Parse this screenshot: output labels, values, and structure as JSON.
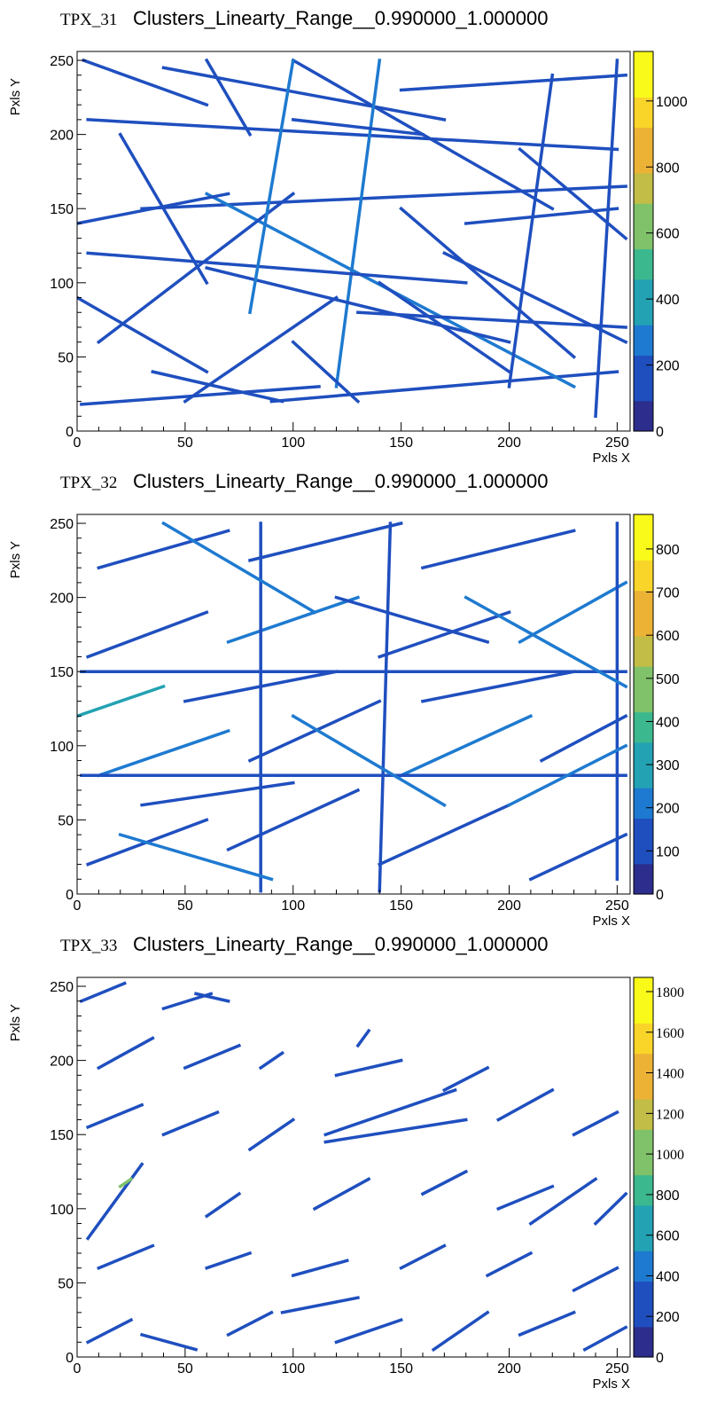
{
  "chart_data": [
    {
      "type": "heatmap",
      "title_prefix": "TPX_31",
      "title": "Clusters_Linearty_Range__0.990000_1.000000",
      "xlabel": "Pxls X",
      "ylabel": "Pxls Y",
      "xlim": [
        0,
        256
      ],
      "ylim": [
        0,
        256
      ],
      "xticks": [
        0,
        50,
        100,
        150,
        200,
        250
      ],
      "yticks": [
        0,
        50,
        100,
        150,
        200,
        250
      ],
      "zlim": [
        0,
        1150
      ],
      "zticks": [
        0,
        200,
        400,
        600,
        800,
        1000
      ],
      "colorscale": [
        "#2c2d8c",
        "#1f4fbf",
        "#1e7ad0",
        "#23a2b3",
        "#3cb88f",
        "#7fc26a",
        "#c1bd46",
        "#ecb236",
        "#f9d52a",
        "#f9f91a"
      ],
      "tracks": [
        {
          "x": [
            2,
            112
          ],
          "y": [
            18,
            30
          ],
          "v": 180
        },
        {
          "x": [
            90,
            250
          ],
          "y": [
            20,
            40
          ],
          "v": 160
        },
        {
          "x": [
            0,
            60
          ],
          "y": [
            90,
            40
          ],
          "v": 220
        },
        {
          "x": [
            40,
            170
          ],
          "y": [
            245,
            210
          ],
          "v": 200
        },
        {
          "x": [
            5,
            250
          ],
          "y": [
            210,
            190
          ],
          "v": 210
        },
        {
          "x": [
            30,
            254
          ],
          "y": [
            150,
            165
          ],
          "v": 190
        },
        {
          "x": [
            60,
            230
          ],
          "y": [
            160,
            30
          ],
          "v": 240
        },
        {
          "x": [
            100,
            220
          ],
          "y": [
            250,
            150
          ],
          "v": 200
        },
        {
          "x": [
            120,
            140
          ],
          "y": [
            30,
            250
          ],
          "v": 230
        },
        {
          "x": [
            150,
            254
          ],
          "y": [
            230,
            240
          ],
          "v": 190
        },
        {
          "x": [
            200,
            220
          ],
          "y": [
            30,
            240
          ],
          "v": 220
        },
        {
          "x": [
            10,
            100
          ],
          "y": [
            60,
            160
          ],
          "v": 210
        },
        {
          "x": [
            60,
            200
          ],
          "y": [
            110,
            60
          ],
          "v": 200
        },
        {
          "x": [
            170,
            254
          ],
          "y": [
            120,
            60
          ],
          "v": 200
        },
        {
          "x": [
            5,
            180
          ],
          "y": [
            120,
            100
          ],
          "v": 180
        },
        {
          "x": [
            240,
            250
          ],
          "y": [
            10,
            250
          ],
          "v": 200
        },
        {
          "x": [
            80,
            100
          ],
          "y": [
            80,
            250
          ],
          "v": 240
        },
        {
          "x": [
            20,
            60
          ],
          "y": [
            200,
            100
          ],
          "v": 220
        },
        {
          "x": [
            150,
            230
          ],
          "y": [
            150,
            50
          ],
          "v": 210
        },
        {
          "x": [
            100,
            160
          ],
          "y": [
            210,
            200
          ],
          "v": 190
        },
        {
          "x": [
            3,
            60
          ],
          "y": [
            250,
            220
          ],
          "v": 200
        },
        {
          "x": [
            35,
            95
          ],
          "y": [
            40,
            20
          ],
          "v": 190
        },
        {
          "x": [
            130,
            254
          ],
          "y": [
            80,
            70
          ],
          "v": 200
        },
        {
          "x": [
            180,
            250
          ],
          "y": [
            140,
            150
          ],
          "v": 180
        },
        {
          "x": [
            60,
            80
          ],
          "y": [
            250,
            200
          ],
          "v": 220
        },
        {
          "x": [
            0,
            70
          ],
          "y": [
            140,
            160
          ],
          "v": 190
        },
        {
          "x": [
            140,
            200
          ],
          "y": [
            100,
            40
          ],
          "v": 200
        },
        {
          "x": [
            100,
            130
          ],
          "y": [
            60,
            20
          ],
          "v": 210
        },
        {
          "x": [
            205,
            254
          ],
          "y": [
            190,
            130
          ],
          "v": 200
        },
        {
          "x": [
            50,
            120
          ],
          "y": [
            20,
            90
          ],
          "v": 190
        }
      ]
    },
    {
      "type": "heatmap",
      "title_prefix": "TPX_32",
      "title": "Clusters_Linearty_Range__0.990000_1.000000",
      "xlabel": "Pxls X",
      "ylabel": "Pxls Y",
      "xlim": [
        0,
        256
      ],
      "ylim": [
        0,
        256
      ],
      "xticks": [
        0,
        50,
        100,
        150,
        200,
        250
      ],
      "yticks": [
        0,
        50,
        100,
        150,
        200,
        250
      ],
      "zlim": [
        0,
        880
      ],
      "zticks": [
        0,
        100,
        200,
        300,
        400,
        500,
        600,
        700,
        800
      ],
      "colorscale": [
        "#2c2d8c",
        "#1f4fbf",
        "#1e7ad0",
        "#23a2b3",
        "#3cb88f",
        "#7fc26a",
        "#c1bd46",
        "#ecb236",
        "#f9d52a",
        "#f9f91a"
      ],
      "tracks": [
        {
          "x": [
            5,
            60
          ],
          "y": [
            20,
            50
          ],
          "v": 160
        },
        {
          "x": [
            70,
            130
          ],
          "y": [
            30,
            70
          ],
          "v": 170
        },
        {
          "x": [
            140,
            200
          ],
          "y": [
            20,
            60
          ],
          "v": 160
        },
        {
          "x": [
            210,
            254
          ],
          "y": [
            10,
            40
          ],
          "v": 170
        },
        {
          "x": [
            10,
            70
          ],
          "y": [
            80,
            110
          ],
          "v": 180
        },
        {
          "x": [
            80,
            140
          ],
          "y": [
            90,
            130
          ],
          "v": 170
        },
        {
          "x": [
            150,
            210
          ],
          "y": [
            80,
            120
          ],
          "v": 180
        },
        {
          "x": [
            215,
            254
          ],
          "y": [
            90,
            120
          ],
          "v": 170
        },
        {
          "x": [
            5,
            60
          ],
          "y": [
            160,
            190
          ],
          "v": 170
        },
        {
          "x": [
            70,
            130
          ],
          "y": [
            170,
            200
          ],
          "v": 180
        },
        {
          "x": [
            140,
            200
          ],
          "y": [
            160,
            190
          ],
          "v": 170
        },
        {
          "x": [
            205,
            254
          ],
          "y": [
            170,
            210
          ],
          "v": 180
        },
        {
          "x": [
            10,
            70
          ],
          "y": [
            220,
            245
          ],
          "v": 160
        },
        {
          "x": [
            80,
            150
          ],
          "y": [
            225,
            250
          ],
          "v": 170
        },
        {
          "x": [
            160,
            230
          ],
          "y": [
            220,
            245
          ],
          "v": 170
        },
        {
          "x": [
            2,
            254
          ],
          "y": [
            150,
            150
          ],
          "v": 150
        },
        {
          "x": [
            2,
            254
          ],
          "y": [
            80,
            80
          ],
          "v": 150
        },
        {
          "x": [
            85,
            85
          ],
          "y": [
            2,
            250
          ],
          "v": 160
        },
        {
          "x": [
            140,
            145
          ],
          "y": [
            2,
            250
          ],
          "v": 160
        },
        {
          "x": [
            250,
            250
          ],
          "y": [
            10,
            250
          ],
          "v": 160
        },
        {
          "x": [
            20,
            90
          ],
          "y": [
            40,
            10
          ],
          "v": 200
        },
        {
          "x": [
            100,
            170
          ],
          "y": [
            120,
            60
          ],
          "v": 180
        },
        {
          "x": [
            180,
            254
          ],
          "y": [
            200,
            140
          ],
          "v": 200
        },
        {
          "x": [
            40,
            110
          ],
          "y": [
            250,
            190
          ],
          "v": 180
        },
        {
          "x": [
            120,
            190
          ],
          "y": [
            200,
            170
          ],
          "v": 170
        },
        {
          "x": [
            0,
            40
          ],
          "y": [
            120,
            140
          ],
          "v": 280
        },
        {
          "x": [
            200,
            254
          ],
          "y": [
            60,
            100
          ],
          "v": 200
        },
        {
          "x": [
            50,
            120
          ],
          "y": [
            130,
            150
          ],
          "v": 170
        },
        {
          "x": [
            160,
            230
          ],
          "y": [
            130,
            150
          ],
          "v": 170
        },
        {
          "x": [
            30,
            100
          ],
          "y": [
            60,
            75
          ],
          "v": 160
        }
      ]
    },
    {
      "type": "heatmap",
      "title_prefix": "TPX_33",
      "title": "Clusters_Linearty_Range__0.990000_1.000000",
      "xlabel": "Pxls X",
      "ylabel": "Pxls Y",
      "xlim": [
        0,
        256
      ],
      "ylim": [
        0,
        256
      ],
      "xticks": [
        0,
        50,
        100,
        150,
        200,
        250
      ],
      "yticks": [
        0,
        50,
        100,
        150,
        200,
        250
      ],
      "zlim": [
        0,
        1870
      ],
      "zticks": [
        0,
        200,
        400,
        600,
        800,
        1000,
        1200,
        1400,
        1600,
        1800
      ],
      "colorscale": [
        "#2c2d8c",
        "#1f4fbf",
        "#1e7ad0",
        "#23a2b3",
        "#3cb88f",
        "#7fc26a",
        "#c1bd46",
        "#ecb236",
        "#f9d52a",
        "#f9f91a"
      ],
      "tracks": [
        {
          "x": [
            2,
            22
          ],
          "y": [
            240,
            252
          ],
          "v": 280
        },
        {
          "x": [
            40,
            62
          ],
          "y": [
            235,
            245
          ],
          "v": 260
        },
        {
          "x": [
            55,
            70
          ],
          "y": [
            245,
            240
          ],
          "v": 270
        },
        {
          "x": [
            10,
            35
          ],
          "y": [
            195,
            215
          ],
          "v": 280
        },
        {
          "x": [
            50,
            75
          ],
          "y": [
            195,
            210
          ],
          "v": 270
        },
        {
          "x": [
            85,
            95
          ],
          "y": [
            195,
            205
          ],
          "v": 260
        },
        {
          "x": [
            130,
            135
          ],
          "y": [
            210,
            220
          ],
          "v": 280
        },
        {
          "x": [
            120,
            150
          ],
          "y": [
            190,
            200
          ],
          "v": 270
        },
        {
          "x": [
            170,
            190
          ],
          "y": [
            180,
            195
          ],
          "v": 280
        },
        {
          "x": [
            5,
            30
          ],
          "y": [
            155,
            170
          ],
          "v": 260
        },
        {
          "x": [
            40,
            65
          ],
          "y": [
            150,
            165
          ],
          "v": 270
        },
        {
          "x": [
            80,
            100
          ],
          "y": [
            140,
            160
          ],
          "v": 260
        },
        {
          "x": [
            115,
            175
          ],
          "y": [
            150,
            180
          ],
          "v": 270
        },
        {
          "x": [
            195,
            220
          ],
          "y": [
            160,
            180
          ],
          "v": 270
        },
        {
          "x": [
            230,
            250
          ],
          "y": [
            150,
            165
          ],
          "v": 260
        },
        {
          "x": [
            115,
            180
          ],
          "y": [
            145,
            160
          ],
          "v": 280
        },
        {
          "x": [
            5,
            30
          ],
          "y": [
            80,
            130
          ],
          "v": 300
        },
        {
          "x": [
            20,
            25
          ],
          "y": [
            115,
            120
          ],
          "v": 1100
        },
        {
          "x": [
            60,
            75
          ],
          "y": [
            95,
            110
          ],
          "v": 260
        },
        {
          "x": [
            110,
            135
          ],
          "y": [
            100,
            120
          ],
          "v": 270
        },
        {
          "x": [
            160,
            180
          ],
          "y": [
            110,
            125
          ],
          "v": 260
        },
        {
          "x": [
            195,
            220
          ],
          "y": [
            100,
            115
          ],
          "v": 270
        },
        {
          "x": [
            210,
            240
          ],
          "y": [
            90,
            120
          ],
          "v": 280
        },
        {
          "x": [
            240,
            254
          ],
          "y": [
            90,
            110
          ],
          "v": 260
        },
        {
          "x": [
            10,
            35
          ],
          "y": [
            60,
            75
          ],
          "v": 270
        },
        {
          "x": [
            60,
            80
          ],
          "y": [
            60,
            70
          ],
          "v": 260
        },
        {
          "x": [
            100,
            125
          ],
          "y": [
            55,
            65
          ],
          "v": 270
        },
        {
          "x": [
            150,
            170
          ],
          "y": [
            60,
            75
          ],
          "v": 260
        },
        {
          "x": [
            190,
            210
          ],
          "y": [
            55,
            70
          ],
          "v": 270
        },
        {
          "x": [
            230,
            250
          ],
          "y": [
            45,
            60
          ],
          "v": 260
        },
        {
          "x": [
            5,
            25
          ],
          "y": [
            10,
            25
          ],
          "v": 270
        },
        {
          "x": [
            30,
            55
          ],
          "y": [
            15,
            5
          ],
          "v": 280
        },
        {
          "x": [
            70,
            90
          ],
          "y": [
            15,
            30
          ],
          "v": 260
        },
        {
          "x": [
            120,
            150
          ],
          "y": [
            10,
            25
          ],
          "v": 270
        },
        {
          "x": [
            165,
            190
          ],
          "y": [
            5,
            30
          ],
          "v": 280
        },
        {
          "x": [
            205,
            230
          ],
          "y": [
            15,
            30
          ],
          "v": 260
        },
        {
          "x": [
            235,
            254
          ],
          "y": [
            5,
            20
          ],
          "v": 270
        },
        {
          "x": [
            95,
            130
          ],
          "y": [
            30,
            40
          ],
          "v": 270
        }
      ]
    }
  ]
}
